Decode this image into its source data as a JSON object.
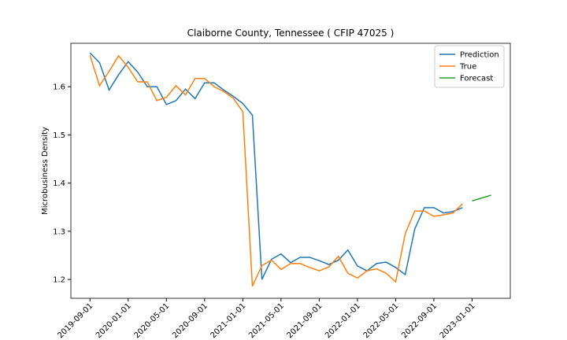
{
  "chart_data": {
    "type": "line",
    "title": "Claiborne County, Tennessee ( CFIP 47025 )",
    "y_label": "Microbusiness Density",
    "xlim": [
      "2019-07-01",
      "2023-05-01"
    ],
    "xticks": [
      "2019-09-01",
      "2020-01-01",
      "2020-05-01",
      "2020-09-01",
      "2021-01-01",
      "2021-05-01",
      "2021-09-01",
      "2022-01-01",
      "2022-05-01",
      "2022-09-01",
      "2023-01-01"
    ],
    "ylim": [
      1.161,
      1.69
    ],
    "yticks": [
      1.2,
      1.3,
      1.4,
      1.5,
      1.6
    ],
    "grid": false,
    "legend": "upper right",
    "series": [
      {
        "name": "Prediction",
        "color": "#1f77b4",
        "x": [
          "2019-09-01",
          "2019-10-01",
          "2019-11-01",
          "2019-12-01",
          "2020-01-01",
          "2020-02-01",
          "2020-03-01",
          "2020-04-01",
          "2020-05-01",
          "2020-06-01",
          "2020-07-01",
          "2020-08-01",
          "2020-09-01",
          "2020-10-01",
          "2020-11-01",
          "2020-12-01",
          "2021-01-01",
          "2021-02-01",
          "2021-03-01",
          "2021-04-01",
          "2021-05-01",
          "2021-06-01",
          "2021-07-01",
          "2021-08-01",
          "2021-09-01",
          "2021-10-01",
          "2021-11-01",
          "2021-12-01",
          "2022-01-01",
          "2022-02-01",
          "2022-03-01",
          "2022-04-01",
          "2022-05-01",
          "2022-06-01",
          "2022-07-01",
          "2022-08-01",
          "2022-09-01",
          "2022-10-01",
          "2022-11-01",
          "2022-12-01"
        ],
        "values": [
          1.67,
          1.65,
          1.593,
          1.625,
          1.652,
          1.63,
          1.6,
          1.6,
          1.563,
          1.571,
          1.595,
          1.575,
          1.608,
          1.608,
          1.593,
          1.58,
          1.565,
          1.541,
          1.2,
          1.242,
          1.253,
          1.235,
          1.246,
          1.246,
          1.239,
          1.231,
          1.24,
          1.261,
          1.228,
          1.218,
          1.233,
          1.236,
          1.225,
          1.21,
          1.305,
          1.349,
          1.349,
          1.338,
          1.341,
          1.349
        ]
      },
      {
        "name": "True",
        "color": "#ff7f0e",
        "x": [
          "2019-09-01",
          "2019-10-01",
          "2019-11-01",
          "2019-12-01",
          "2020-01-01",
          "2020-02-01",
          "2020-03-01",
          "2020-04-01",
          "2020-05-01",
          "2020-06-01",
          "2020-07-01",
          "2020-08-01",
          "2020-09-01",
          "2020-10-01",
          "2020-11-01",
          "2020-12-01",
          "2021-01-01",
          "2021-02-01",
          "2021-03-01",
          "2021-04-01",
          "2021-05-01",
          "2021-06-01",
          "2021-07-01",
          "2021-08-01",
          "2021-09-01",
          "2021-10-01",
          "2021-11-01",
          "2021-12-01",
          "2022-01-01",
          "2022-02-01",
          "2022-03-01",
          "2022-04-01",
          "2022-05-01",
          "2022-06-01",
          "2022-07-01",
          "2022-08-01",
          "2022-09-01",
          "2022-10-01",
          "2022-11-01",
          "2022-12-01"
        ],
        "values": [
          1.665,
          1.602,
          1.632,
          1.664,
          1.64,
          1.61,
          1.61,
          1.571,
          1.578,
          1.602,
          1.583,
          1.617,
          1.617,
          1.6,
          1.59,
          1.576,
          1.548,
          1.186,
          1.229,
          1.24,
          1.221,
          1.233,
          1.233,
          1.225,
          1.218,
          1.226,
          1.248,
          1.213,
          1.203,
          1.218,
          1.222,
          1.213,
          1.195,
          1.295,
          1.342,
          1.342,
          1.331,
          1.334,
          1.338,
          1.357
        ]
      },
      {
        "name": "Forecast",
        "color": "#2ca02c",
        "x": [
          "2023-01-01",
          "2023-02-01",
          "2023-03-01"
        ],
        "values": [
          1.363,
          1.369,
          1.375
        ]
      }
    ]
  }
}
